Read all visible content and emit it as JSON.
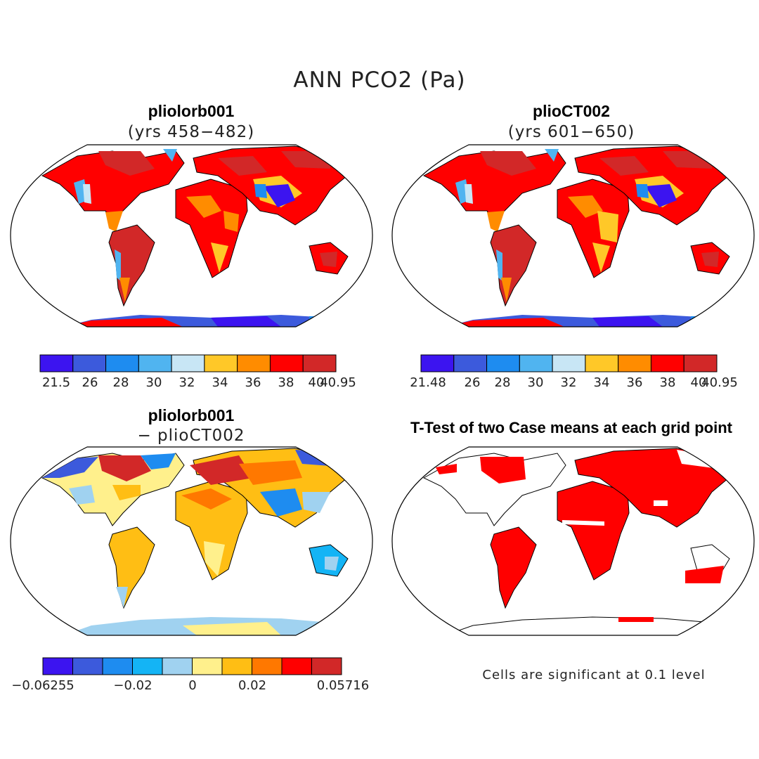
{
  "main_title": "ANN PCO2 (Pa)",
  "panels": {
    "top_left": {
      "title": "pliolorb001",
      "subtitle": "(yrs 458−482)"
    },
    "top_right": {
      "title": "plioCT002",
      "subtitle": "(yrs 601−650)"
    },
    "bottom_left": {
      "title": "pliolorb001",
      "subtitle": "− plioCT002"
    },
    "bottom_right": {
      "title": "T-Test of two Case means at each grid point",
      "note": "Cells are significant at 0.1 level"
    }
  },
  "colorbars": {
    "top_left": {
      "colors": [
        "#3c14f0",
        "#3c5adc",
        "#1e8cf0",
        "#50b4f0",
        "#c8e6f5",
        "#ffc828",
        "#ff8c00",
        "#ff0000",
        "#d22828"
      ],
      "labels": [
        "21.5",
        "26",
        "28",
        "30",
        "32",
        "34",
        "36",
        "38",
        "40",
        "40.95"
      ]
    },
    "top_right": {
      "colors": [
        "#3c14f0",
        "#3c5adc",
        "#1e8cf0",
        "#50b4f0",
        "#c8e6f5",
        "#ffc828",
        "#ff8c00",
        "#ff0000",
        "#d22828"
      ],
      "labels": [
        "21.48",
        "26",
        "28",
        "30",
        "32",
        "34",
        "36",
        "38",
        "40",
        "40.95"
      ]
    },
    "bottom_left": {
      "colors": [
        "#3c14f0",
        "#3c5adc",
        "#1e8cf0",
        "#14b4f5",
        "#a0d2f0",
        "#fff08c",
        "#ffbe14",
        "#ff7800",
        "#ff0000",
        "#d22828"
      ],
      "labels": [
        "−0.06255",
        "−0.02",
        "0",
        "0.02",
        "0.05716"
      ]
    }
  }
}
